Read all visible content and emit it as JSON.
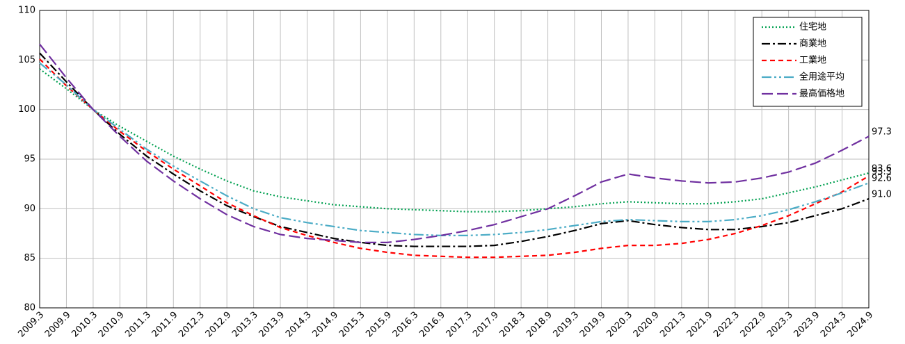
{
  "chart_data": {
    "type": "line",
    "categories": [
      "2009.3",
      "2009.9",
      "2010.3",
      "2010.9",
      "2011.3",
      "2011.9",
      "2012.3",
      "2012.9",
      "2013.3",
      "2013.9",
      "2014.3",
      "2014.9",
      "2015.3",
      "2015.9",
      "2016.3",
      "2016.9",
      "2017.3",
      "2017.9",
      "2018.3",
      "2018.9",
      "2019.3",
      "2019.9",
      "2020.3",
      "2020.9",
      "2021.3",
      "2021.9",
      "2022.3",
      "2022.9",
      "2023.3",
      "2023.9",
      "2024.3",
      "2024.9"
    ],
    "ylim": [
      80,
      110
    ],
    "yticks": [
      80,
      85,
      90,
      95,
      100,
      105,
      110
    ],
    "grid": true,
    "legend": "top-right",
    "series": [
      {
        "name": "住宅地",
        "color": "#00a050",
        "dash": "2,3",
        "values": [
          104.1,
          102.1,
          100,
          98.3,
          96.8,
          95.3,
          94.0,
          92.8,
          91.8,
          91.2,
          90.8,
          90.4,
          90.2,
          90.0,
          89.9,
          89.8,
          89.7,
          89.7,
          89.8,
          90.0,
          90.2,
          90.5,
          90.7,
          90.6,
          90.5,
          90.5,
          90.7,
          91.0,
          91.6,
          92.2,
          92.9,
          93.6
        ],
        "value_labels": [
          null,
          null,
          null,
          null,
          null,
          null,
          null,
          null,
          null,
          null,
          null,
          null,
          null,
          null,
          null,
          null,
          null,
          null,
          null,
          null,
          null,
          null,
          null,
          null,
          null,
          null,
          null,
          null,
          null,
          null,
          null,
          "93.6"
        ]
      },
      {
        "name": "商業地",
        "color": "#000000",
        "dash": "12,4,3,4",
        "values": [
          105.7,
          102.8,
          100,
          97.5,
          95.3,
          93.5,
          91.8,
          90.3,
          89.2,
          88.2,
          87.6,
          87.0,
          86.6,
          86.3,
          86.2,
          86.2,
          86.2,
          86.3,
          86.7,
          87.2,
          87.8,
          88.5,
          88.8,
          88.4,
          88.1,
          87.9,
          87.9,
          88.2,
          88.6,
          89.3,
          90.0,
          91.0
        ],
        "value_labels": [
          null,
          null,
          null,
          null,
          null,
          null,
          null,
          null,
          null,
          null,
          null,
          null,
          null,
          null,
          null,
          null,
          null,
          null,
          null,
          null,
          null,
          null,
          null,
          null,
          null,
          null,
          null,
          null,
          null,
          null,
          null,
          "91.0"
        ]
      },
      {
        "name": "工業地",
        "color": "#ff0000",
        "dash": "7,5",
        "values": [
          105.1,
          102.4,
          100,
          97.8,
          95.8,
          94.0,
          92.3,
          90.6,
          89.3,
          88.1,
          87.3,
          86.6,
          86.0,
          85.6,
          85.3,
          85.2,
          85.1,
          85.1,
          85.2,
          85.3,
          85.6,
          86.0,
          86.3,
          86.3,
          86.5,
          86.9,
          87.5,
          88.3,
          89.3,
          90.5,
          91.7,
          93.3
        ],
        "value_labels": [
          null,
          null,
          null,
          null,
          null,
          null,
          null,
          null,
          null,
          null,
          null,
          null,
          null,
          null,
          null,
          null,
          null,
          null,
          null,
          null,
          null,
          null,
          null,
          null,
          null,
          null,
          null,
          null,
          null,
          null,
          null,
          "93.3"
        ]
      },
      {
        "name": "全用途平均",
        "color": "#4bacc6",
        "dash": "14,4,3,4,3,4",
        "values": [
          104.7,
          102.5,
          100,
          98.0,
          96.0,
          94.3,
          92.8,
          91.3,
          90.0,
          89.1,
          88.6,
          88.2,
          87.8,
          87.6,
          87.4,
          87.3,
          87.3,
          87.4,
          87.6,
          87.9,
          88.3,
          88.7,
          88.9,
          88.8,
          88.7,
          88.7,
          88.9,
          89.3,
          89.9,
          90.7,
          91.6,
          92.6
        ],
        "value_labels": [
          null,
          null,
          null,
          null,
          null,
          null,
          null,
          null,
          null,
          null,
          null,
          null,
          null,
          null,
          null,
          null,
          null,
          null,
          null,
          null,
          null,
          null,
          null,
          null,
          null,
          null,
          null,
          null,
          null,
          null,
          null,
          "92.6"
        ]
      },
      {
        "name": "最高価格地",
        "color": "#7030a0",
        "dash": "16,6",
        "values": [
          106.6,
          103.2,
          100,
          97.3,
          94.8,
          92.8,
          91.0,
          89.4,
          88.2,
          87.4,
          87.0,
          86.8,
          86.6,
          86.6,
          86.9,
          87.3,
          87.8,
          88.4,
          89.2,
          90.0,
          91.3,
          92.7,
          93.5,
          93.1,
          92.8,
          92.6,
          92.7,
          93.1,
          93.7,
          94.6,
          95.9,
          97.3
        ],
        "value_labels": [
          null,
          null,
          null,
          null,
          null,
          null,
          null,
          null,
          null,
          null,
          null,
          null,
          null,
          null,
          null,
          null,
          null,
          null,
          null,
          null,
          null,
          null,
          null,
          null,
          null,
          null,
          null,
          null,
          null,
          null,
          null,
          "97.3"
        ]
      }
    ]
  }
}
